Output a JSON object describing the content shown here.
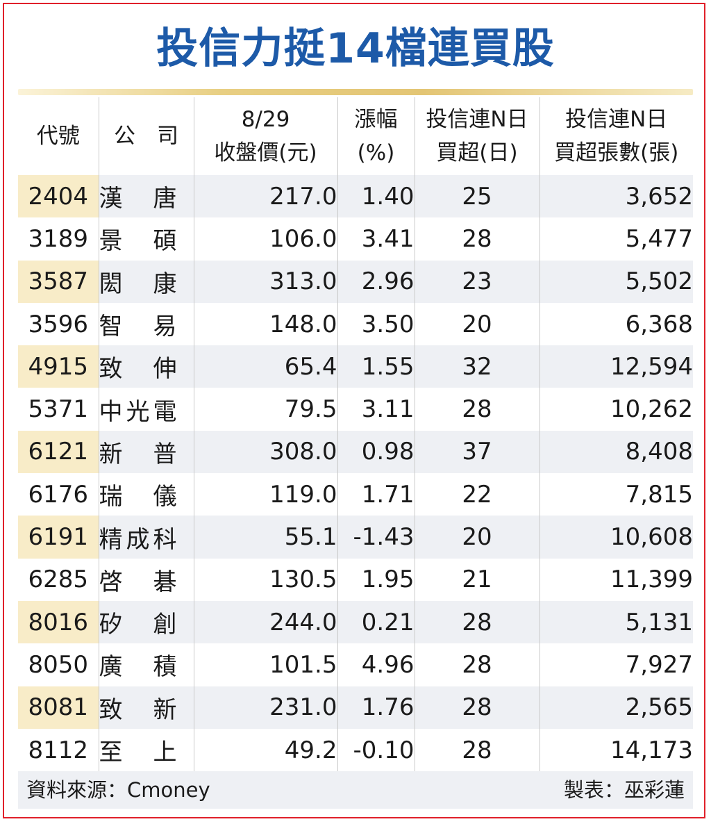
{
  "title": "投信力挺14檔連買股",
  "headers": {
    "code": "代號",
    "company": "公　司",
    "price_line1": "8/29",
    "price_line2": "收盤價(元)",
    "chg_line1": "漲幅",
    "chg_line2": "(%)",
    "days_line1": "投信連N日",
    "days_line2": "買超(日)",
    "lots_line1": "投信連N日",
    "lots_line2": "買超張數(張)"
  },
  "rows": [
    {
      "code": "2404",
      "company": "漢唐",
      "price": "217.0",
      "change": "1.40",
      "days": "25",
      "lots": "3,652"
    },
    {
      "code": "3189",
      "company": "景碩",
      "price": "106.0",
      "change": "3.41",
      "days": "28",
      "lots": "5,477"
    },
    {
      "code": "3587",
      "company": "閎康",
      "price": "313.0",
      "change": "2.96",
      "days": "23",
      "lots": "5,502"
    },
    {
      "code": "3596",
      "company": "智易",
      "price": "148.0",
      "change": "3.50",
      "days": "20",
      "lots": "6,368"
    },
    {
      "code": "4915",
      "company": "致伸",
      "price": "65.4",
      "change": "1.55",
      "days": "32",
      "lots": "12,594"
    },
    {
      "code": "5371",
      "company": "中光電",
      "price": "79.5",
      "change": "3.11",
      "days": "28",
      "lots": "10,262"
    },
    {
      "code": "6121",
      "company": "新普",
      "price": "308.0",
      "change": "0.98",
      "days": "37",
      "lots": "8,408"
    },
    {
      "code": "6176",
      "company": "瑞儀",
      "price": "119.0",
      "change": "1.71",
      "days": "22",
      "lots": "7,815"
    },
    {
      "code": "6191",
      "company": "精成科",
      "price": "55.1",
      "change": "-1.43",
      "days": "20",
      "lots": "10,608"
    },
    {
      "code": "6285",
      "company": "啓碁",
      "price": "130.5",
      "change": "1.95",
      "days": "21",
      "lots": "11,399"
    },
    {
      "code": "8016",
      "company": "矽創",
      "price": "244.0",
      "change": "0.21",
      "days": "28",
      "lots": "5,131"
    },
    {
      "code": "8050",
      "company": "廣積",
      "price": "101.5",
      "change": "4.96",
      "days": "28",
      "lots": "7,927"
    },
    {
      "code": "8081",
      "company": "致新",
      "price": "231.0",
      "change": "1.76",
      "days": "28",
      "lots": "2,565"
    },
    {
      "code": "8112",
      "company": "至上",
      "price": "49.2",
      "change": "-0.10",
      "days": "28",
      "lots": "14,173"
    }
  ],
  "footer": {
    "source": "資料來源：Cmoney",
    "maker": "製表：巫彩蓮"
  },
  "colors": {
    "title": "#1d5aa8",
    "frame": "#e0202a",
    "stripe": "#eef0f4",
    "code_highlight": "#f8ecc8",
    "gold_rule": "#e3c574"
  }
}
